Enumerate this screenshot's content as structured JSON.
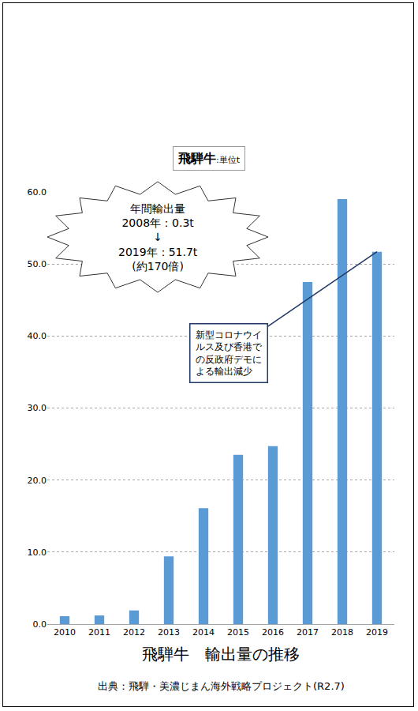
{
  "chart_data": {
    "type": "bar",
    "title": "飛騨牛:単位t",
    "categories": [
      "2010",
      "2011",
      "2012",
      "2013",
      "2014",
      "2015",
      "2016",
      "2017",
      "2018",
      "2019"
    ],
    "values": [
      1.1,
      1.2,
      1.9,
      9.4,
      16.1,
      23.5,
      24.7,
      47.5,
      59.0,
      51.7
    ],
    "color": "#5b9bd5",
    "ylim": [
      0,
      60
    ],
    "yticks": [
      {
        "value": 0,
        "label": "0.0"
      },
      {
        "value": 10,
        "label": "10.0"
      },
      {
        "value": 20,
        "label": "20.0"
      },
      {
        "value": 30,
        "label": "30.0"
      },
      {
        "value": 40,
        "label": "40.0"
      },
      {
        "value": 50,
        "label": "50.0"
      },
      {
        "value": 60,
        "label": "60.0"
      }
    ],
    "grid": true,
    "x_label": "飛騨牛　輸出量の推移",
    "source": "出典：飛騨・美濃じまん海外戦略プロジェクト(R2.7)",
    "annotations": [
      {
        "text": "年間輸出量\n2008年：0.3t\n↓\n2019年：51.7t\n(約170倍)"
      },
      {
        "text": "新型コロナウイルス及び香港での反政府デモによる輸出減少",
        "category": "2019"
      }
    ]
  }
}
